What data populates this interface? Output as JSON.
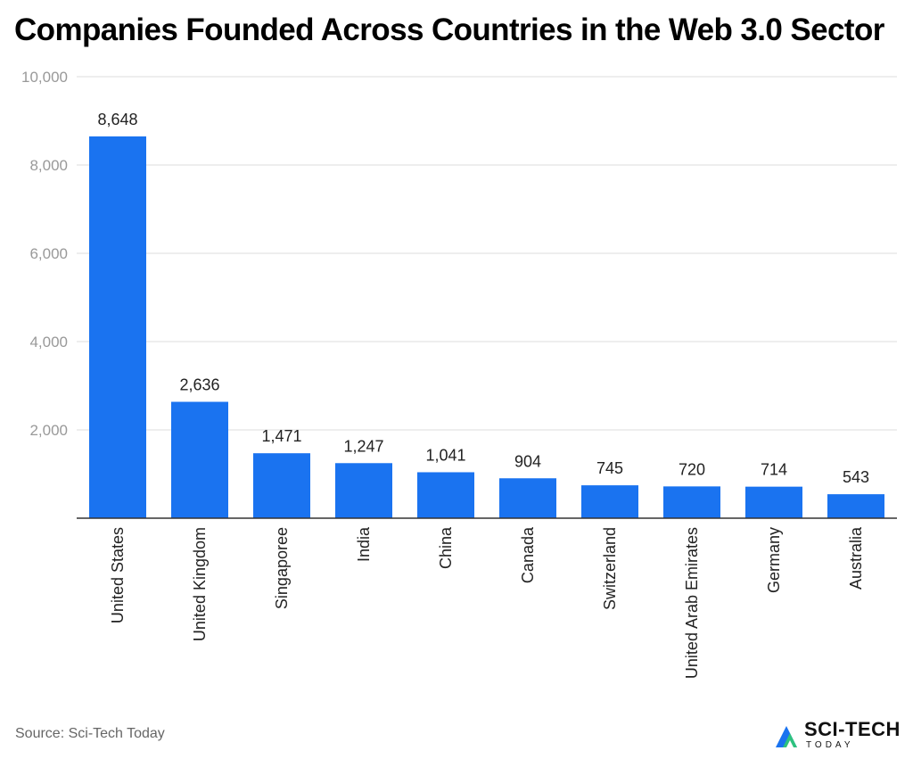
{
  "title": "Companies Founded Across Countries in the Web 3.0 Sector",
  "source": "Source: Sci-Tech Today",
  "logo": {
    "text": "SCI-TECH",
    "subtext": "TODAY"
  },
  "colors": {
    "bar": "#1a73f0",
    "grid": "#dddddd",
    "axis": "#333333",
    "tick_label": "#999999"
  },
  "chart_data": {
    "type": "bar",
    "categories": [
      "United States",
      "United Kingdom",
      "Singaporee",
      "India",
      "China",
      "Canada",
      "Switzerland",
      "United Arab Emirates",
      "Germany",
      "Australia"
    ],
    "values": [
      8648,
      2636,
      1471,
      1247,
      1041,
      904,
      745,
      720,
      714,
      543
    ],
    "value_labels": [
      "8,648",
      "2,636",
      "1,471",
      "1,247",
      "1,041",
      "904",
      "745",
      "720",
      "714",
      "543"
    ],
    "ylim": [
      0,
      10000
    ],
    "yticks": [
      2000,
      4000,
      6000,
      8000,
      10000
    ],
    "ytick_labels": [
      "2,000",
      "4,000",
      "6,000",
      "8,000",
      "10,000"
    ],
    "xlabel": "",
    "ylabel": "",
    "grid": true,
    "x_tick_rotation": "vertical"
  }
}
